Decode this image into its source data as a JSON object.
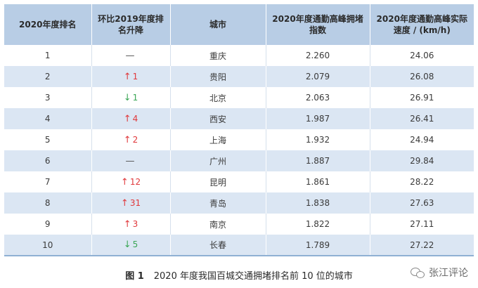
{
  "table": {
    "headers": [
      "2020年度排名",
      "环比2019年度排名升降",
      "城市",
      "2020年度通勤高峰拥堵指数",
      "2020年度通勤高峰实际速度 / (km/h)"
    ],
    "rows": [
      {
        "rank": "1",
        "change": {
          "dir": "flat",
          "symbol": "—",
          "num": ""
        },
        "city": "重庆",
        "index": "2.260",
        "speed": "24.06"
      },
      {
        "rank": "2",
        "change": {
          "dir": "up",
          "symbol": "↑",
          "num": "1"
        },
        "city": "贵阳",
        "index": "2.079",
        "speed": "26.08"
      },
      {
        "rank": "3",
        "change": {
          "dir": "down",
          "symbol": "↓",
          "num": "1"
        },
        "city": "北京",
        "index": "2.063",
        "speed": "26.91"
      },
      {
        "rank": "4",
        "change": {
          "dir": "up",
          "symbol": "↑",
          "num": "4"
        },
        "city": "西安",
        "index": "1.987",
        "speed": "26.41"
      },
      {
        "rank": "5",
        "change": {
          "dir": "up",
          "symbol": "↑",
          "num": "2"
        },
        "city": "上海",
        "index": "1.932",
        "speed": "24.94"
      },
      {
        "rank": "6",
        "change": {
          "dir": "flat",
          "symbol": "—",
          "num": ""
        },
        "city": "广州",
        "index": "1.887",
        "speed": "29.84"
      },
      {
        "rank": "7",
        "change": {
          "dir": "up",
          "symbol": "↑",
          "num": "12"
        },
        "city": "昆明",
        "index": "1.861",
        "speed": "28.22"
      },
      {
        "rank": "8",
        "change": {
          "dir": "up",
          "symbol": "↑",
          "num": "31"
        },
        "city": "青岛",
        "index": "1.838",
        "speed": "27.63"
      },
      {
        "rank": "9",
        "change": {
          "dir": "up",
          "symbol": "↑",
          "num": "3"
        },
        "city": "南京",
        "index": "1.822",
        "speed": "27.11"
      },
      {
        "rank": "10",
        "change": {
          "dir": "down",
          "symbol": "↓",
          "num": "5"
        },
        "city": "长春",
        "index": "1.789",
        "speed": "27.22"
      }
    ]
  },
  "caption": {
    "figure": "图 1",
    "text": "2020 年度我国百城交通拥堵排名前 10 位的城市"
  },
  "watermark": {
    "text": "张江评论"
  },
  "colors": {
    "header_bg": "#b8cde5",
    "stripe_bg": "#dbe6f3",
    "up": "#e0383b",
    "down": "#3aa655"
  }
}
